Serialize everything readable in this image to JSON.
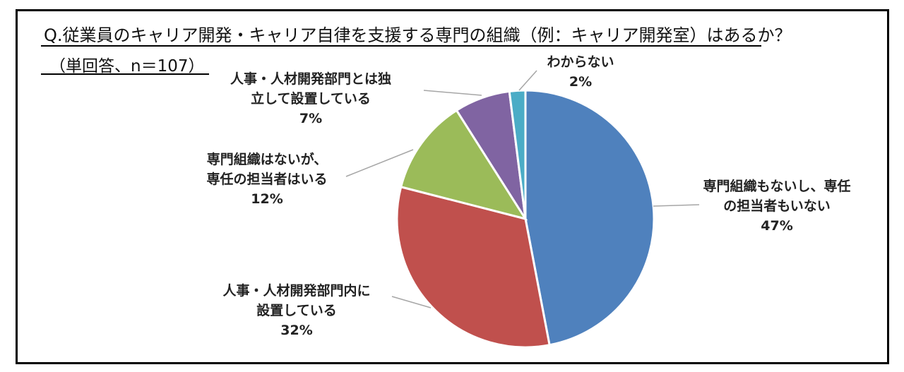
{
  "chart_data": {
    "type": "pie",
    "title": "Q.従業員のキャリア開発・キャリア自律を支援する専門の組織（例：キャリア開発室）はあるか？",
    "subtitle": "（単回答、n＝107）",
    "slices": [
      {
        "label_lines": [
          "専門組織もないし、専任",
          "の担当者もいない"
        ],
        "value": 47,
        "pct_label": "47%",
        "color": "#4F81BD"
      },
      {
        "label_lines": [
          "人事・人材開発部門内に",
          "設置している"
        ],
        "value": 32,
        "pct_label": "32%",
        "color": "#C0504D"
      },
      {
        "label_lines": [
          "専門組織はないが、",
          "専任の担当者はいる"
        ],
        "value": 12,
        "pct_label": "12%",
        "color": "#9BBB59"
      },
      {
        "label_lines": [
          "人事・人材開発部門とは独",
          "立して設置している"
        ],
        "value": 7,
        "pct_label": "7%",
        "color": "#8064A2"
      },
      {
        "label_lines": [
          "わからない"
        ],
        "value": 2,
        "pct_label": "2%",
        "color": "#4BACC6"
      }
    ]
  }
}
